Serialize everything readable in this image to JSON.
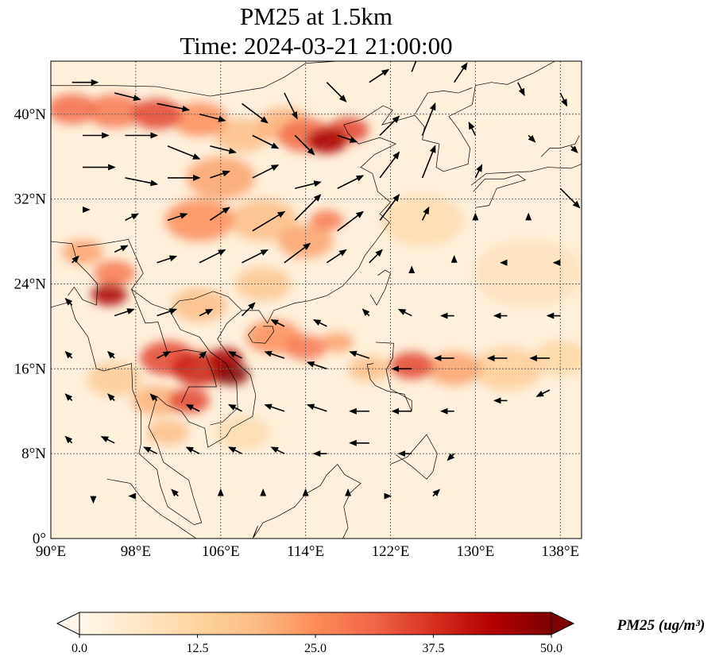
{
  "title": {
    "line1": "PM25 at 1.5km",
    "line2": "Time: 2024-03-21 21:00:00"
  },
  "map": {
    "lon_range": [
      90,
      140
    ],
    "lat_range": [
      0,
      45
    ],
    "lon_ticks": [
      {
        "v": 90,
        "label": "90°E"
      },
      {
        "v": 98,
        "label": "98°E"
      },
      {
        "v": 106,
        "label": "106°E"
      },
      {
        "v": 114,
        "label": "114°E"
      },
      {
        "v": 122,
        "label": "122°E"
      },
      {
        "v": 130,
        "label": "130°E"
      },
      {
        "v": 138,
        "label": "138°E"
      }
    ],
    "lat_ticks": [
      {
        "v": 0,
        "label": "0°"
      },
      {
        "v": 8,
        "label": "8°N"
      },
      {
        "v": 16,
        "label": "16°N"
      },
      {
        "v": 24,
        "label": "24°N"
      },
      {
        "v": 32,
        "label": "32°N"
      },
      {
        "v": 40,
        "label": "40°N"
      }
    ],
    "background_value": 3,
    "pm25_plumes": [
      [
        92,
        40.5,
        30,
        1.8
      ],
      [
        96,
        40.3,
        28,
        2
      ],
      [
        100,
        40,
        35,
        1.8
      ],
      [
        104,
        39.5,
        25,
        2
      ],
      [
        108,
        38,
        18,
        2
      ],
      [
        114,
        38,
        30,
        2
      ],
      [
        116,
        37.5,
        45,
        1.5
      ],
      [
        118,
        38.5,
        35,
        1.5
      ],
      [
        112,
        39,
        20,
        2
      ],
      [
        106,
        34,
        22,
        2.5
      ],
      [
        104,
        30,
        25,
        2.5
      ],
      [
        110,
        30,
        18,
        2.5
      ],
      [
        114,
        28,
        22,
        2
      ],
      [
        116,
        30,
        28,
        1.2
      ],
      [
        93,
        27,
        22,
        1.5
      ],
      [
        95.5,
        23,
        45,
        1.3
      ],
      [
        96,
        25,
        28,
        1.5
      ],
      [
        101,
        17,
        35,
        2
      ],
      [
        104,
        16,
        40,
        2
      ],
      [
        107,
        15.5,
        50,
        1.3
      ],
      [
        106.5,
        17,
        45,
        1.2
      ],
      [
        103,
        13,
        35,
        1.5
      ],
      [
        100,
        13,
        20,
        1.8
      ],
      [
        101,
        10,
        18,
        1.5
      ],
      [
        111,
        19,
        25,
        2
      ],
      [
        114,
        18,
        28,
        1.5
      ],
      [
        117,
        18.5,
        22,
        1.2
      ],
      [
        120,
        16,
        18,
        1.5
      ],
      [
        124,
        16.3,
        35,
        1.6
      ],
      [
        128,
        16,
        22,
        2
      ],
      [
        133,
        16,
        14,
        2.5
      ],
      [
        138,
        17,
        12,
        2
      ],
      [
        104,
        22,
        18,
        2
      ],
      [
        110,
        24,
        16,
        2
      ],
      [
        96,
        15,
        15,
        2
      ],
      [
        108,
        10,
        10,
        2
      ],
      [
        125,
        30,
        10,
        3
      ],
      [
        135,
        25,
        8,
        4
      ]
    ],
    "wind_vectors": [
      [
        92,
        43,
        4,
        0
      ],
      [
        96,
        42,
        4,
        -1
      ],
      [
        100,
        41,
        5,
        -1
      ],
      [
        104,
        40,
        4,
        -1
      ],
      [
        108,
        41,
        4,
        -3
      ],
      [
        112,
        42,
        2,
        -4
      ],
      [
        116,
        43,
        3,
        -3
      ],
      [
        120,
        43,
        3,
        2
      ],
      [
        124,
        44,
        2,
        5
      ],
      [
        128,
        43,
        2,
        3
      ],
      [
        134,
        43,
        1,
        -2
      ],
      [
        138,
        42,
        1,
        -2
      ],
      [
        93,
        38,
        4,
        0
      ],
      [
        97,
        38,
        5,
        0
      ],
      [
        101,
        37,
        5,
        -2
      ],
      [
        105,
        37,
        4,
        -1
      ],
      [
        109,
        38,
        4,
        -2
      ],
      [
        113,
        38,
        3,
        -3
      ],
      [
        117,
        38,
        3,
        -1
      ],
      [
        121,
        38,
        3,
        3
      ],
      [
        125,
        38,
        2,
        5
      ],
      [
        130,
        38,
        -1,
        2
      ],
      [
        135,
        38,
        1,
        -1
      ],
      [
        139,
        37,
        1,
        -1
      ],
      [
        93,
        35,
        5,
        0
      ],
      [
        97,
        34,
        5,
        -1
      ],
      [
        101,
        34,
        5,
        0
      ],
      [
        105,
        34,
        3,
        1
      ],
      [
        109,
        34,
        4,
        2
      ],
      [
        113,
        33,
        4,
        1
      ],
      [
        117,
        33,
        4,
        2
      ],
      [
        121,
        34,
        3,
        4
      ],
      [
        125,
        34,
        2,
        5
      ],
      [
        130,
        34,
        1,
        2
      ],
      [
        138,
        33,
        3,
        -3
      ],
      [
        93,
        31,
        1,
        0
      ],
      [
        97,
        30,
        2,
        1
      ],
      [
        101,
        30,
        3,
        1
      ],
      [
        105,
        30,
        3,
        2
      ],
      [
        109,
        29,
        5,
        3
      ],
      [
        113,
        30,
        4,
        4
      ],
      [
        117,
        29,
        4,
        3
      ],
      [
        121,
        30,
        3,
        4
      ],
      [
        125,
        30,
        1,
        2
      ],
      [
        130,
        30,
        0,
        1
      ],
      [
        135,
        30,
        0,
        1
      ],
      [
        92,
        26,
        1,
        1
      ],
      [
        96,
        27,
        2,
        1
      ],
      [
        100,
        26,
        3,
        1
      ],
      [
        104,
        26,
        4,
        2
      ],
      [
        108,
        26,
        4,
        2
      ],
      [
        112,
        26,
        4,
        3
      ],
      [
        116,
        26,
        3,
        2
      ],
      [
        120,
        26,
        2,
        2
      ],
      [
        124,
        25,
        0,
        1
      ],
      [
        128,
        26,
        0,
        1
      ],
      [
        133,
        26,
        -1,
        0
      ],
      [
        138,
        26,
        -1,
        0
      ],
      [
        92,
        22,
        -1,
        1
      ],
      [
        96,
        21,
        3,
        1
      ],
      [
        100,
        21,
        3,
        1
      ],
      [
        104,
        21,
        2,
        1
      ],
      [
        108,
        21,
        2,
        2
      ],
      [
        112,
        20,
        -2,
        1
      ],
      [
        116,
        20,
        -2,
        1
      ],
      [
        120,
        21,
        -1,
        1
      ],
      [
        124,
        21,
        -2,
        1
      ],
      [
        128,
        21,
        -2,
        0
      ],
      [
        133,
        21,
        -2,
        0
      ],
      [
        138,
        21,
        -2,
        0
      ],
      [
        92,
        17,
        -1,
        1
      ],
      [
        96,
        17,
        -1,
        1
      ],
      [
        100,
        17,
        2,
        1
      ],
      [
        104,
        17,
        1,
        1
      ],
      [
        108,
        17,
        -2,
        1
      ],
      [
        112,
        17,
        -3,
        1
      ],
      [
        116,
        16,
        -3,
        1
      ],
      [
        120,
        17,
        -3,
        1
      ],
      [
        124,
        16,
        -3,
        0
      ],
      [
        128,
        17,
        -3,
        0
      ],
      [
        133,
        17,
        -3,
        0
      ],
      [
        137,
        17,
        -3,
        0
      ],
      [
        92,
        13,
        -1,
        1
      ],
      [
        96,
        13,
        -1,
        1
      ],
      [
        100,
        13,
        -1,
        1
      ],
      [
        104,
        12,
        -2,
        1
      ],
      [
        108,
        12,
        -2,
        1
      ],
      [
        112,
        12,
        -3,
        1
      ],
      [
        116,
        12,
        -3,
        1
      ],
      [
        120,
        12,
        -3,
        0
      ],
      [
        124,
        12,
        -3,
        0
      ],
      [
        128,
        12,
        -2,
        0
      ],
      [
        133,
        13,
        -2,
        0
      ],
      [
        137,
        14,
        -2,
        -1
      ],
      [
        92,
        9,
        -1,
        1
      ],
      [
        96,
        9,
        -2,
        1
      ],
      [
        100,
        8,
        -2,
        1
      ],
      [
        104,
        8,
        -2,
        1
      ],
      [
        108,
        8,
        -2,
        1
      ],
      [
        112,
        8,
        -2,
        1
      ],
      [
        116,
        8,
        -2,
        0
      ],
      [
        120,
        9,
        -3,
        0
      ],
      [
        124,
        8,
        -2,
        0
      ],
      [
        128,
        8,
        -1,
        -1
      ],
      [
        94,
        4,
        0,
        -1
      ],
      [
        98,
        4,
        -1,
        0
      ],
      [
        102,
        4,
        -1,
        1
      ],
      [
        106,
        4,
        0,
        1
      ],
      [
        110,
        4,
        0,
        1
      ],
      [
        114,
        4,
        0,
        1
      ],
      [
        118,
        4,
        0,
        1
      ],
      [
        122,
        4,
        0,
        0
      ],
      [
        126,
        4,
        1,
        1
      ]
    ]
  },
  "colorbar": {
    "label": "PM25 (ug/m³)",
    "min": 0,
    "max": 50,
    "ticks": [
      "0.0",
      "12.5",
      "25.0",
      "37.5",
      "50.0"
    ],
    "colors": [
      "#fff7ec",
      "#fee8c8",
      "#fdd49e",
      "#fdbb84",
      "#fc8d59",
      "#ef6548",
      "#d7301f",
      "#b30000",
      "#7f0000"
    ]
  }
}
